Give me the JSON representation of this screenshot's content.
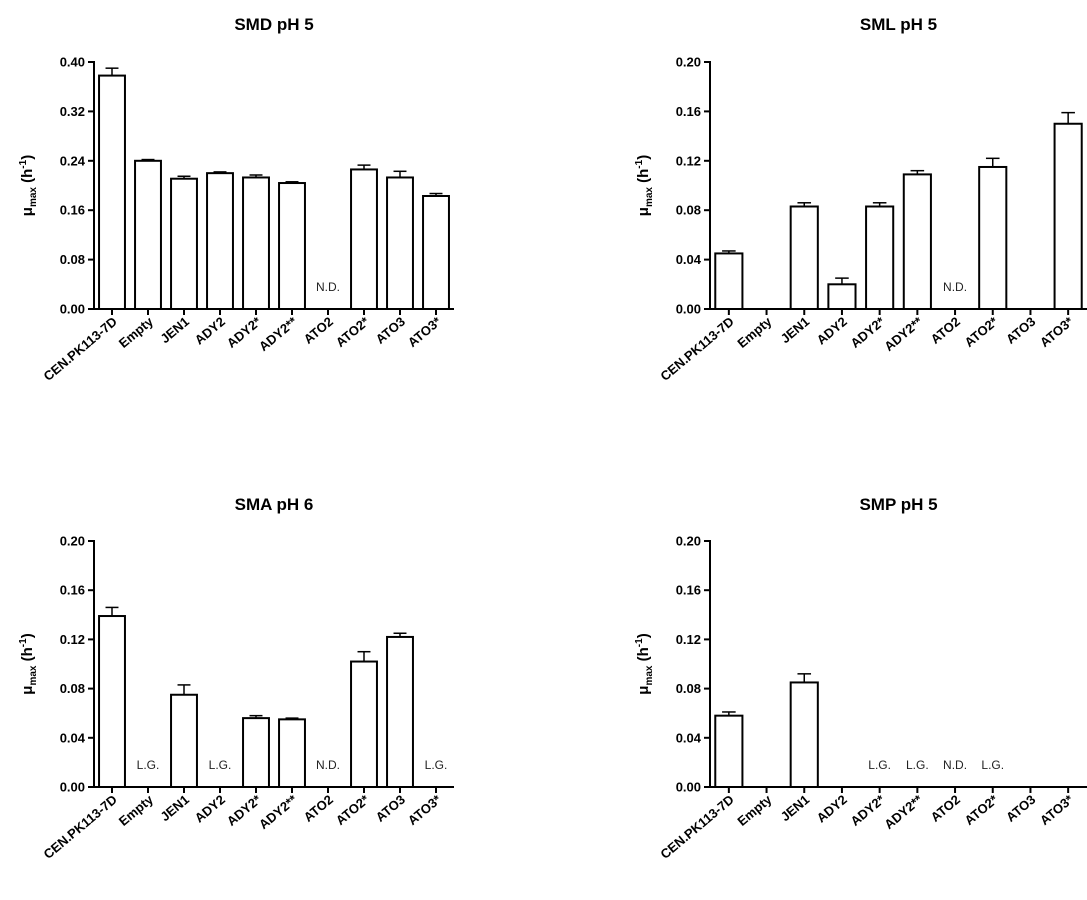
{
  "chart_data": [
    {
      "type": "bar",
      "title": "SMD pH 5",
      "ylabel": {
        "main": "μ",
        "sub": "max",
        "unit_open": " (h",
        "sup": "-1",
        "unit_close": ")"
      },
      "ylim": [
        0,
        0.4
      ],
      "yticks": [
        "0.00",
        "0.08",
        "0.16",
        "0.24",
        "0.32",
        "0.40"
      ],
      "categories": [
        "CEN.PK113-7D",
        "Empty",
        "JEN1",
        "ADY2",
        "ADY2*",
        "ADY2**",
        "ATO2",
        "ATO2*",
        "ATO3",
        "ATO3*"
      ],
      "values": [
        0.378,
        0.24,
        0.211,
        0.22,
        0.213,
        0.204,
        null,
        0.226,
        0.213,
        0.183
      ],
      "errors": [
        0.012,
        0.002,
        0.004,
        0.002,
        0.004,
        0.002,
        null,
        0.007,
        0.01,
        0.004
      ],
      "annotations": [
        "",
        "",
        "",
        "",
        "",
        "",
        "N.D.",
        "",
        "",
        ""
      ]
    },
    {
      "type": "bar",
      "title": "SML pH 5",
      "ylabel": {
        "main": "μ",
        "sub": "max",
        "unit_open": " (h",
        "sup": "-1",
        "unit_close": ")"
      },
      "ylim": [
        0,
        0.2
      ],
      "yticks": [
        "0.00",
        "0.04",
        "0.08",
        "0.12",
        "0.16",
        "0.20"
      ],
      "categories": [
        "CEN.PK113-7D",
        "Empty",
        "JEN1",
        "ADY2",
        "ADY2*",
        "ADY2**",
        "ATO2",
        "ATO2*",
        "ATO3",
        "ATO3*"
      ],
      "values": [
        0.045,
        null,
        0.083,
        0.02,
        0.083,
        0.109,
        null,
        0.115,
        null,
        0.15
      ],
      "errors": [
        0.002,
        null,
        0.003,
        0.005,
        0.003,
        0.003,
        null,
        0.007,
        null,
        0.009
      ],
      "annotations": [
        "",
        "",
        "",
        "",
        "",
        "",
        "N.D.",
        "",
        "",
        ""
      ]
    },
    {
      "type": "bar",
      "title": "SMA pH 6",
      "ylabel": {
        "main": "μ",
        "sub": "max",
        "unit_open": " (h",
        "sup": "-1",
        "unit_close": ")"
      },
      "ylim": [
        0,
        0.2
      ],
      "yticks": [
        "0.00",
        "0.04",
        "0.08",
        "0.12",
        "0.16",
        "0.20"
      ],
      "categories": [
        "CEN.PK113-7D",
        "Empty",
        "JEN1",
        "ADY2",
        "ADY2*",
        "ADY2**",
        "ATO2",
        "ATO2*",
        "ATO3",
        "ATO3*"
      ],
      "values": [
        0.139,
        null,
        0.075,
        null,
        0.056,
        0.055,
        null,
        0.102,
        0.122,
        null
      ],
      "errors": [
        0.007,
        null,
        0.008,
        null,
        0.002,
        0.001,
        null,
        0.008,
        0.003,
        null
      ],
      "annotations": [
        "",
        "L.G.",
        "",
        "L.G.",
        "",
        "",
        "N.D.",
        "",
        "",
        "L.G."
      ]
    },
    {
      "type": "bar",
      "title": "SMP pH 5",
      "ylabel": {
        "main": "μ",
        "sub": "max",
        "unit_open": " (h",
        "sup": "-1",
        "unit_close": ")"
      },
      "ylim": [
        0,
        0.2
      ],
      "yticks": [
        "0.00",
        "0.04",
        "0.08",
        "0.12",
        "0.16",
        "0.20"
      ],
      "categories": [
        "CEN.PK113-7D",
        "Empty",
        "JEN1",
        "ADY2",
        "ADY2*",
        "ADY2**",
        "ATO2",
        "ATO2*",
        "ATO3",
        "ATO3*"
      ],
      "values": [
        0.058,
        null,
        0.085,
        null,
        null,
        null,
        null,
        null,
        null,
        null
      ],
      "errors": [
        0.003,
        null,
        0.007,
        null,
        null,
        null,
        null,
        null,
        null,
        null
      ],
      "annotations": [
        "",
        "",
        "",
        "",
        "L.G.",
        "L.G.",
        "N.D.",
        "L.G.",
        "",
        ""
      ]
    }
  ]
}
